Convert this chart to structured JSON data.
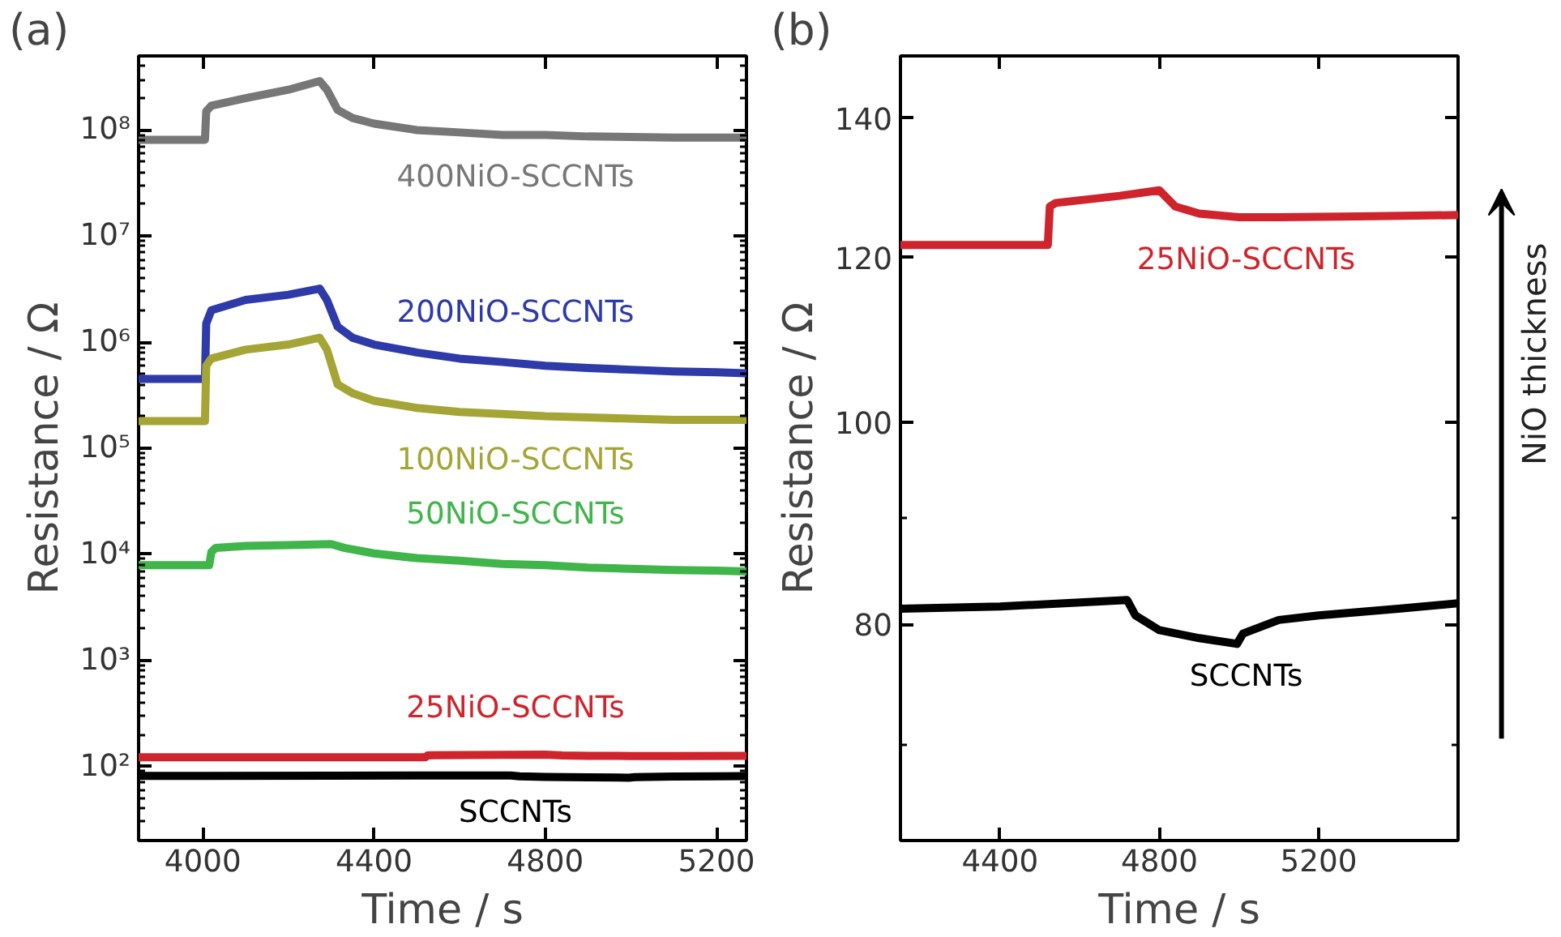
{
  "chart_data": [
    {
      "type": "line",
      "title": "(a)",
      "xlabel": "Time / s",
      "ylabel": "Resistance / Ω",
      "log": "y",
      "xlim": [
        3850,
        5270
      ],
      "xticks": [
        4000,
        4400,
        4800,
        5200
      ],
      "ylim": [
        20,
        500000000
      ],
      "yticks": [
        {
          "value": 100,
          "label": "10²"
        },
        {
          "value": 1000,
          "label": "10³"
        },
        {
          "value": 10000,
          "label": "10⁴"
        },
        {
          "value": 100000,
          "label": "10⁵"
        },
        {
          "value": 1000000,
          "label": "10⁶"
        },
        {
          "value": 10000000,
          "label": "10⁷"
        },
        {
          "value": 100000000,
          "label": "10⁸"
        }
      ],
      "grid": false,
      "legend": false,
      "series": [
        {
          "name": "400NiO-SCCNTs",
          "color": "#777777",
          "x": [
            3850,
            4005,
            4008,
            4020,
            4100,
            4200,
            4273,
            4290,
            4315,
            4350,
            4400,
            4500,
            4600,
            4700,
            4800,
            4900,
            5000,
            5100,
            5200,
            5270
          ],
          "values": [
            81000000,
            81000000,
            150000000,
            170000000,
            200000000,
            240000000,
            290000000,
            240000000,
            155000000,
            130000000,
            115000000,
            100000000,
            95000000,
            90000000,
            90000000,
            87000000,
            86000000,
            85000000,
            85000000,
            85000000
          ]
        },
        {
          "name": "200NiO-SCCNTs",
          "color": "#2e3aa8",
          "x": [
            3850,
            4005,
            4008,
            4020,
            4100,
            4200,
            4273,
            4290,
            4315,
            4350,
            4400,
            4500,
            4600,
            4700,
            4800,
            4900,
            5000,
            5100,
            5200,
            5270
          ],
          "values": [
            450000,
            450000,
            1500000,
            2000000,
            2500000,
            2800000,
            3200000,
            2500000,
            1400000,
            1100000,
            950000,
            800000,
            700000,
            650000,
            600000,
            570000,
            550000,
            530000,
            520000,
            510000
          ]
        },
        {
          "name": "100NiO-SCCNTs",
          "color": "#a5a536",
          "x": [
            3850,
            4005,
            4008,
            4020,
            4100,
            4200,
            4273,
            4290,
            4315,
            4350,
            4400,
            4500,
            4600,
            4700,
            4800,
            4900,
            5000,
            5100,
            5200,
            5270
          ],
          "values": [
            180000,
            180000,
            600000,
            700000,
            850000,
            950000,
            1100000,
            850000,
            400000,
            330000,
            280000,
            240000,
            220000,
            210000,
            200000,
            195000,
            190000,
            185000,
            185000,
            185000
          ]
        },
        {
          "name": "50NiO-SCCNTs",
          "color": "#3fb54a",
          "x": [
            3850,
            4015,
            4020,
            4030,
            4100,
            4200,
            4300,
            4330,
            4400,
            4500,
            4600,
            4700,
            4800,
            4900,
            5000,
            5100,
            5200,
            5270
          ],
          "values": [
            7900,
            7900,
            10500,
            11500,
            12000,
            12200,
            12500,
            11500,
            10200,
            9200,
            8700,
            8100,
            7900,
            7500,
            7300,
            7100,
            7000,
            6900
          ]
        },
        {
          "name": "25NiO-SCCNTs",
          "color": "#d0242c",
          "x": [
            3850,
            4520,
            4525,
            4540,
            4700,
            4800,
            4840,
            4900,
            5000,
            5100,
            5270
          ],
          "values": [
            122,
            122,
            127,
            127.5,
            128.5,
            129.3,
            127,
            126,
            125.5,
            125.5,
            125.6
          ]
        },
        {
          "name": "SCCNTs",
          "color": "#000000",
          "x": [
            3850,
            4300,
            4719,
            4740,
            4800,
            4900,
            4995,
            5010,
            5100,
            5200,
            5270
          ],
          "values": [
            81.4,
            81.8,
            82.2,
            80.8,
            79.5,
            78.8,
            78.3,
            79.2,
            80.4,
            80.8,
            81.2
          ]
        }
      ]
    },
    {
      "type": "line",
      "title": "(b)",
      "xlabel": "Time / s",
      "ylabel": "Resistance / Ω",
      "log": "y",
      "xlim": [
        4150,
        5550
      ],
      "xticks": [
        4400,
        4800,
        5200
      ],
      "ylim": [
        63,
        150
      ],
      "yticks": [
        80,
        100,
        120,
        140
      ],
      "grid": false,
      "legend": false,
      "annotations": [
        "NiO thickness"
      ],
      "series": [
        {
          "name": "25NiO-SCCNTs",
          "color": "#d0242c",
          "x": [
            4150,
            4520,
            4525,
            4540,
            4700,
            4800,
            4840,
            4900,
            5000,
            5100,
            5300,
            5550
          ],
          "values": [
            121.7,
            121.7,
            127,
            127.5,
            128.5,
            129.3,
            127,
            126,
            125.5,
            125.5,
            125.6,
            125.8
          ]
        },
        {
          "name": "SCCNTs",
          "color": "#000000",
          "x": [
            4150,
            4400,
            4719,
            4740,
            4800,
            4900,
            4995,
            5010,
            5100,
            5200,
            5400,
            5550
          ],
          "values": [
            81.4,
            81.6,
            82.2,
            80.8,
            79.5,
            78.8,
            78.3,
            79.2,
            80.4,
            80.8,
            81.4,
            81.9
          ]
        }
      ]
    }
  ]
}
